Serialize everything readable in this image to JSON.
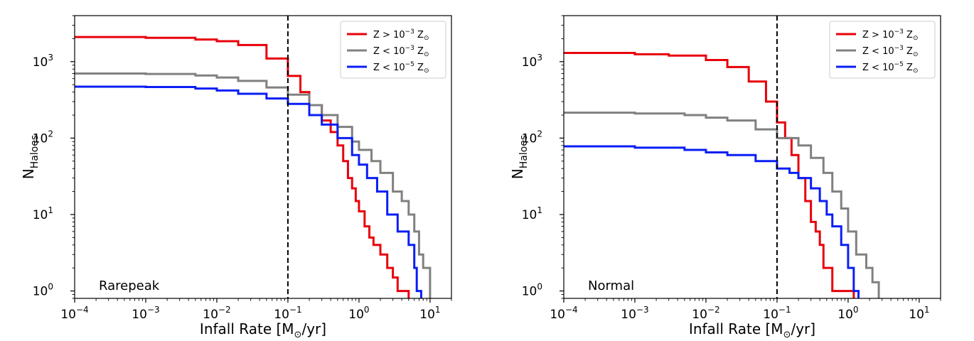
{
  "chart_data": [
    {
      "type": "line",
      "panel_label": "Rarepeak",
      "xlabel_text": "Infall Rate [M",
      "xlabel_sub": "⊙",
      "xlabel_tail": "/yr]",
      "ylabel_main": "N",
      "ylabel_sub": "Haloes",
      "x_scale": "log",
      "y_scale": "log",
      "xlim": [
        0.0001,
        20
      ],
      "ylim": [
        0.8,
        4000
      ],
      "x_ticks": [
        {
          "exp": "−4",
          "value": 0.0001
        },
        {
          "exp": "−3",
          "value": 0.001
        },
        {
          "exp": "−2",
          "value": 0.01
        },
        {
          "exp": "−1",
          "value": 0.1
        },
        {
          "exp": "0",
          "value": 1
        },
        {
          "exp": "1",
          "value": 10
        }
      ],
      "y_ticks": [
        {
          "exp": "0",
          "value": 1
        },
        {
          "exp": "1",
          "value": 10
        },
        {
          "exp": "2",
          "value": 100
        },
        {
          "exp": "3",
          "value": 1000
        }
      ],
      "vline_x": 0.1,
      "legend_position": "top-right",
      "series": [
        {
          "name_pre": "Z > 10",
          "name_exp": "−3",
          "name_post": " Z",
          "name_sub": "⊙",
          "color": "#e8000b",
          "x": [
            0.0001,
            0.001,
            0.005,
            0.01,
            0.02,
            0.05,
            0.1,
            0.15,
            0.2,
            0.3,
            0.4,
            0.5,
            0.6,
            0.7,
            0.8,
            0.9,
            1.0,
            1.2,
            1.4,
            1.6,
            2.0,
            2.5,
            3.0,
            3.5,
            5.0
          ],
          "y": [
            2100,
            2050,
            1950,
            1850,
            1650,
            1100,
            650,
            400,
            270,
            170,
            120,
            80,
            50,
            30,
            22,
            15,
            11,
            7,
            5,
            4,
            3,
            2,
            1.5,
            1,
            1
          ]
        },
        {
          "name_pre": "Z < 10",
          "name_exp": "−3",
          "name_post": " Z",
          "name_sub": "⊙",
          "color": "#808080",
          "x": [
            0.0001,
            0.001,
            0.005,
            0.01,
            0.02,
            0.05,
            0.1,
            0.2,
            0.3,
            0.5,
            0.8,
            1.0,
            1.5,
            2.0,
            3.0,
            4.0,
            5.0,
            6.0,
            7.0,
            8.0,
            10.0
          ],
          "y": [
            700,
            690,
            660,
            620,
            560,
            460,
            370,
            270,
            200,
            140,
            90,
            70,
            50,
            35,
            20,
            15,
            10,
            6,
            3,
            2,
            1
          ]
        },
        {
          "name_pre": "Z < 10",
          "name_exp": "−5",
          "name_post": " Z",
          "name_sub": "⊙",
          "color": "#0a1ef5",
          "x": [
            0.0001,
            0.001,
            0.005,
            0.01,
            0.02,
            0.05,
            0.1,
            0.2,
            0.3,
            0.5,
            0.8,
            1.0,
            1.3,
            1.8,
            2.5,
            3.5,
            5.0,
            6.0,
            6.5,
            7.5
          ],
          "y": [
            470,
            465,
            445,
            420,
            380,
            330,
            280,
            200,
            150,
            100,
            60,
            45,
            30,
            20,
            10,
            6,
            4,
            2,
            1,
            1
          ]
        }
      ]
    },
    {
      "type": "line",
      "panel_label": "Normal",
      "xlabel_text": "Infall Rate [M",
      "xlabel_sub": "⊙",
      "xlabel_tail": "/yr]",
      "ylabel_main": "N",
      "ylabel_sub": "Haloes",
      "x_scale": "log",
      "y_scale": "log",
      "xlim": [
        0.0001,
        20
      ],
      "ylim": [
        0.8,
        4000
      ],
      "x_ticks": [
        {
          "exp": "−4",
          "value": 0.0001
        },
        {
          "exp": "−3",
          "value": 0.001
        },
        {
          "exp": "−2",
          "value": 0.01
        },
        {
          "exp": "−1",
          "value": 0.1
        },
        {
          "exp": "0",
          "value": 1
        },
        {
          "exp": "1",
          "value": 10
        }
      ],
      "y_ticks": [
        {
          "exp": "0",
          "value": 1
        },
        {
          "exp": "1",
          "value": 10
        },
        {
          "exp": "2",
          "value": 100
        },
        {
          "exp": "3",
          "value": 1000
        }
      ],
      "vline_x": 0.1,
      "legend_position": "top-right",
      "series": [
        {
          "name_pre": "Z > 10",
          "name_exp": "−3",
          "name_post": " Z",
          "name_sub": "⊙",
          "color": "#e8000b",
          "x": [
            0.0001,
            0.001,
            0.003,
            0.01,
            0.02,
            0.04,
            0.07,
            0.1,
            0.13,
            0.16,
            0.2,
            0.25,
            0.3,
            0.35,
            0.4,
            0.45,
            0.5,
            0.6,
            0.8,
            1.2
          ],
          "y": [
            1300,
            1250,
            1200,
            1050,
            850,
            550,
            300,
            160,
            100,
            60,
            30,
            15,
            8,
            6,
            4,
            2,
            2,
            1,
            1,
            1
          ]
        },
        {
          "name_pre": "Z < 10",
          "name_exp": "−3",
          "name_post": " Z",
          "name_sub": "⊙",
          "color": "#808080",
          "x": [
            0.0001,
            0.001,
            0.005,
            0.01,
            0.02,
            0.05,
            0.1,
            0.2,
            0.3,
            0.45,
            0.6,
            0.8,
            1.0,
            1.3,
            1.8,
            2.2,
            2.7
          ],
          "y": [
            215,
            210,
            200,
            185,
            170,
            130,
            100,
            80,
            55,
            35,
            20,
            12,
            6,
            3,
            2,
            1.3,
            1
          ]
        },
        {
          "name_pre": "Z < 10",
          "name_exp": "−5",
          "name_post": " Z",
          "name_sub": "⊙",
          "color": "#0a1ef5",
          "x": [
            0.0001,
            0.001,
            0.005,
            0.01,
            0.02,
            0.05,
            0.1,
            0.15,
            0.2,
            0.3,
            0.4,
            0.5,
            0.6,
            0.8,
            1.0,
            1.2,
            1.4
          ],
          "y": [
            78,
            75,
            70,
            65,
            60,
            50,
            40,
            35,
            30,
            22,
            15,
            10,
            7,
            4,
            2,
            1,
            1
          ]
        }
      ]
    }
  ]
}
